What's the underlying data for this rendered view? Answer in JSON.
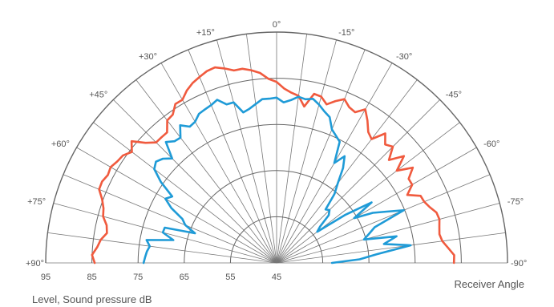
{
  "chart_data": {
    "type": "polar-line",
    "xlabel": "Level, Sound pressure  dB",
    "angle_axis_label": "Receiver Angle",
    "radial_axis": {
      "min": 45,
      "max": 95,
      "rings": [
        95,
        85,
        75,
        65,
        55,
        45
      ],
      "tick_labels": [
        "95",
        "85",
        "75",
        "65",
        "55",
        "45"
      ]
    },
    "angle_ticks": [
      {
        "angle": 90,
        "label": "+90°"
      },
      {
        "angle": 75,
        "label": "+75°"
      },
      {
        "angle": 60,
        "label": "+60°"
      },
      {
        "angle": 45,
        "label": "+45°"
      },
      {
        "angle": 30,
        "label": "+30°"
      },
      {
        "angle": 15,
        "label": "+15°"
      },
      {
        "angle": 0,
        "label": "0°"
      },
      {
        "angle": -15,
        "label": "-15°"
      },
      {
        "angle": -30,
        "label": "-30°"
      },
      {
        "angle": -45,
        "label": "-45°"
      },
      {
        "angle": -60,
        "label": "-60°"
      },
      {
        "angle": -75,
        "label": "-75°"
      },
      {
        "angle": -90,
        "label": "-90°"
      }
    ],
    "grid": true,
    "series": [
      {
        "color": "#f05a3e",
        "points": [
          [
            90,
            84.4
          ],
          [
            87.5,
            85.0
          ],
          [
            85,
            84.0
          ],
          [
            82.5,
            83.4
          ],
          [
            80,
            82.3
          ],
          [
            77.5,
            82.7
          ],
          [
            75,
            83.9
          ],
          [
            72.5,
            84.3
          ],
          [
            70,
            85.2
          ],
          [
            67.5,
            86.6
          ],
          [
            65,
            86.7
          ],
          [
            62.5,
            86.2
          ],
          [
            60,
            86.5
          ],
          [
            57.5,
            85.9
          ],
          [
            55,
            85.6
          ],
          [
            52.5,
            84.5
          ],
          [
            50,
            86.0
          ],
          [
            47.5,
            83.5
          ],
          [
            45,
            81.9
          ],
          [
            42.5,
            81.9
          ],
          [
            40,
            81.9
          ],
          [
            37.5,
            83.9
          ],
          [
            35,
            84.2
          ],
          [
            32.5,
            85.8
          ],
          [
            30,
            85.8
          ],
          [
            27.5,
            87.1
          ],
          [
            25,
            88.0
          ],
          [
            22.5,
            88.6
          ],
          [
            20,
            89.2
          ],
          [
            17.5,
            89.4
          ],
          [
            15,
            88.6
          ],
          [
            12.5,
            87.7
          ],
          [
            10,
            87.7
          ],
          [
            7.5,
            87.1
          ],
          [
            5,
            86.3
          ],
          [
            2.5,
            84.9
          ],
          [
            0,
            84.2
          ],
          [
            -2.5,
            82.8
          ],
          [
            -5,
            82.0
          ],
          [
            -7.5,
            81.5
          ],
          [
            -10,
            79.4
          ],
          [
            -12.5,
            82.5
          ],
          [
            -15,
            82.3
          ],
          [
            -17.5,
            81.0
          ],
          [
            -20,
            82.3
          ],
          [
            -22.5,
            83.4
          ],
          [
            -25,
            82.2
          ],
          [
            -27.5,
            81.8
          ],
          [
            -30,
            83.4
          ],
          [
            -32.5,
            81.6
          ],
          [
            -35,
            79.6
          ],
          [
            -37.5,
            78.8
          ],
          [
            -40,
            81.6
          ],
          [
            -42.5,
            79.8
          ],
          [
            -45,
            80.6
          ],
          [
            -47.5,
            78.0
          ],
          [
            -50,
            81.0
          ],
          [
            -52.5,
            77.8
          ],
          [
            -55,
            81.0
          ],
          [
            -57.5,
            78.9
          ],
          [
            -60,
            78.9
          ],
          [
            -62.5,
            76.9
          ],
          [
            -65,
            79.4
          ],
          [
            -67.5,
            79.6
          ],
          [
            -70,
            80.3
          ],
          [
            -72.5,
            81.3
          ],
          [
            -75,
            81.5
          ],
          [
            -77.5,
            81.1
          ],
          [
            -80,
            80.8
          ],
          [
            -82.5,
            81.2
          ],
          [
            -85,
            82.3
          ],
          [
            -87.5,
            83.5
          ],
          [
            -90,
            83.4
          ]
        ]
      },
      {
        "color": "#1f9bd7",
        "points": [
          [
            90,
            73.8
          ],
          [
            87.5,
            73.5
          ],
          [
            85,
            73.2
          ],
          [
            82.5,
            72.7
          ],
          [
            80,
            73.6
          ],
          [
            77.5,
            67.9
          ],
          [
            75,
            70.5
          ],
          [
            72.5,
            70.4
          ],
          [
            70,
            63.8
          ],
          [
            67.5,
            66.4
          ],
          [
            65,
            67.5
          ],
          [
            62.5,
            70.7
          ],
          [
            60,
            72.8
          ],
          [
            57.5,
            71.8
          ],
          [
            55,
            75.6
          ],
          [
            52.5,
            78.4
          ],
          [
            50,
            79.1
          ],
          [
            47.5,
            78.4
          ],
          [
            45,
            77.0
          ],
          [
            42.5,
            80.5
          ],
          [
            40,
            79.4
          ],
          [
            37.5,
            79.2
          ],
          [
            35,
            81.4
          ],
          [
            32.5,
            80.0
          ],
          [
            30,
            80.3
          ],
          [
            27.5,
            81.4
          ],
          [
            25,
            81.7
          ],
          [
            22.5,
            82.0
          ],
          [
            20,
            82.6
          ],
          [
            17.5,
            81.0
          ],
          [
            15,
            81.0
          ],
          [
            12.5,
            78.4
          ],
          [
            10,
            78.9
          ],
          [
            7.5,
            79.7
          ],
          [
            5,
            80.6
          ],
          [
            2.5,
            80.6
          ],
          [
            0,
            80.8
          ],
          [
            -2.5,
            79.8
          ],
          [
            -5,
            80.4
          ],
          [
            -7.5,
            81.3
          ],
          [
            -10,
            81.0
          ],
          [
            -12.5,
            81.4
          ],
          [
            -15,
            80.5
          ],
          [
            -17.5,
            79.4
          ],
          [
            -20,
            78.6
          ],
          [
            -22.5,
            76.3
          ],
          [
            -25,
            75.4
          ],
          [
            -27.5,
            74.6
          ],
          [
            -30,
            70.0
          ],
          [
            -32.5,
            72.4
          ],
          [
            -35,
            70.1
          ],
          [
            -37.5,
            66.8
          ],
          [
            -40,
            64.5
          ],
          [
            -42.5,
            60.7
          ],
          [
            -45,
            61.2
          ],
          [
            -47.5,
            60.3
          ],
          [
            -50,
            57.3
          ],
          [
            -52.5,
            56.1
          ],
          [
            -55,
            63.2
          ],
          [
            -57.5,
            69.4
          ],
          [
            -60,
            64.4
          ],
          [
            -62.5,
            68.5
          ],
          [
            -65,
            71.3
          ],
          [
            -67.5,
            74.8
          ],
          [
            -70,
            67.6
          ],
          [
            -72.5,
            66.0
          ],
          [
            -75,
            64.6
          ],
          [
            -77.5,
            71.6
          ],
          [
            -80,
            68.6
          ],
          [
            -82.5,
            74.3
          ],
          [
            -85,
            66.8
          ],
          [
            -87.5,
            63.0
          ],
          [
            -90,
            57.0
          ]
        ]
      }
    ]
  }
}
